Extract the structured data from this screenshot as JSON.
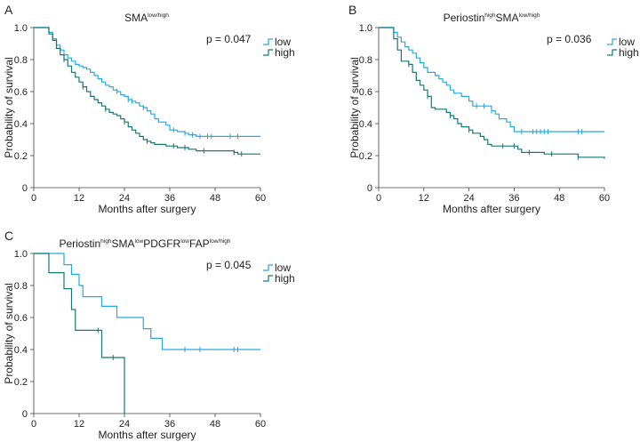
{
  "colors": {
    "low": "#27AAE1",
    "high": "#167A74"
  },
  "chart_data": [
    {
      "panel": "A",
      "type": "line",
      "title_parts": [
        {
          "t": "SMA",
          "sup": false
        },
        {
          "t": "low/high",
          "sup": true
        }
      ],
      "xlabel": "Months after surgery",
      "ylabel": "Probability of survival",
      "xlim": [
        0,
        60
      ],
      "ylim": [
        0,
        1.0
      ],
      "xticks": [
        0,
        12,
        24,
        36,
        48,
        60
      ],
      "yticks": [
        0,
        0.2,
        0.4,
        0.6,
        0.8,
        1.0
      ],
      "p_label": "p = 0.047",
      "series": [
        {
          "name": "low",
          "color_key": "low",
          "points": [
            [
              0,
              1.0
            ],
            [
              3,
              1.0
            ],
            [
              4,
              0.97
            ],
            [
              5,
              0.93
            ],
            [
              6,
              0.89
            ],
            [
              7,
              0.86
            ],
            [
              8,
              0.83
            ],
            [
              9,
              0.81
            ],
            [
              10,
              0.79
            ],
            [
              11,
              0.77
            ],
            [
              12,
              0.76
            ],
            [
              13,
              0.75
            ],
            [
              14,
              0.74
            ],
            [
              15,
              0.72
            ],
            [
              16,
              0.7
            ],
            [
              17,
              0.68
            ],
            [
              18,
              0.66
            ],
            [
              19,
              0.64
            ],
            [
              20,
              0.63
            ],
            [
              21,
              0.61
            ],
            [
              22,
              0.6
            ],
            [
              23,
              0.58
            ],
            [
              24,
              0.57
            ],
            [
              25,
              0.55
            ],
            [
              26,
              0.54
            ],
            [
              27,
              0.53
            ],
            [
              28,
              0.51
            ],
            [
              29,
              0.5
            ],
            [
              30,
              0.48
            ],
            [
              31,
              0.46
            ],
            [
              32,
              0.43
            ],
            [
              33,
              0.41
            ],
            [
              35,
              0.39
            ],
            [
              36,
              0.36
            ],
            [
              38,
              0.35
            ],
            [
              40,
              0.34
            ],
            [
              41,
              0.33
            ],
            [
              43,
              0.32
            ],
            [
              60,
              0.32
            ]
          ],
          "censor": [
            22,
            25,
            26,
            29,
            37,
            40,
            42,
            44,
            46,
            47,
            52,
            54
          ]
        },
        {
          "name": "high",
          "color_key": "high",
          "points": [
            [
              0,
              1.0
            ],
            [
              3,
              1.0
            ],
            [
              4,
              0.96
            ],
            [
              5,
              0.92
            ],
            [
              6,
              0.87
            ],
            [
              7,
              0.83
            ],
            [
              8,
              0.8
            ],
            [
              9,
              0.76
            ],
            [
              10,
              0.72
            ],
            [
              11,
              0.69
            ],
            [
              12,
              0.66
            ],
            [
              13,
              0.63
            ],
            [
              14,
              0.6
            ],
            [
              15,
              0.57
            ],
            [
              16,
              0.55
            ],
            [
              17,
              0.53
            ],
            [
              18,
              0.51
            ],
            [
              19,
              0.49
            ],
            [
              20,
              0.47
            ],
            [
              21,
              0.46
            ],
            [
              22,
              0.45
            ],
            [
              23,
              0.43
            ],
            [
              24,
              0.41
            ],
            [
              25,
              0.38
            ],
            [
              26,
              0.36
            ],
            [
              27,
              0.34
            ],
            [
              28,
              0.32
            ],
            [
              29,
              0.3
            ],
            [
              30,
              0.29
            ],
            [
              31,
              0.28
            ],
            [
              32,
              0.27
            ],
            [
              35,
              0.26
            ],
            [
              38,
              0.25
            ],
            [
              41,
              0.24
            ],
            [
              43,
              0.23
            ],
            [
              53,
              0.22
            ],
            [
              54,
              0.21
            ],
            [
              60,
              0.21
            ]
          ],
          "censor": [
            8,
            13,
            19,
            24,
            30,
            37,
            40,
            45,
            53,
            55
          ]
        }
      ]
    },
    {
      "panel": "B",
      "type": "line",
      "title_parts": [
        {
          "t": "Periostin",
          "sup": false
        },
        {
          "t": "high",
          "sup": true
        },
        {
          "t": "SMA",
          "sup": false
        },
        {
          "t": "low/high",
          "sup": true
        }
      ],
      "xlabel": "Months after surgery",
      "ylabel": "Probability of survival",
      "xlim": [
        0,
        60
      ],
      "ylim": [
        0,
        1.0
      ],
      "xticks": [
        0,
        12,
        24,
        36,
        48,
        60
      ],
      "yticks": [
        0,
        0.2,
        0.4,
        0.6,
        0.8,
        1.0
      ],
      "p_label": "p = 0.036",
      "series": [
        {
          "name": "low",
          "color_key": "low",
          "points": [
            [
              0,
              1.0
            ],
            [
              3,
              1.0
            ],
            [
              4,
              0.97
            ],
            [
              5,
              0.94
            ],
            [
              6,
              0.91
            ],
            [
              7,
              0.88
            ],
            [
              8,
              0.86
            ],
            [
              9,
              0.84
            ],
            [
              10,
              0.81
            ],
            [
              11,
              0.78
            ],
            [
              12,
              0.75
            ],
            [
              13,
              0.72
            ],
            [
              15,
              0.7
            ],
            [
              16,
              0.68
            ],
            [
              17,
              0.66
            ],
            [
              18,
              0.64
            ],
            [
              19,
              0.61
            ],
            [
              20,
              0.59
            ],
            [
              22,
              0.57
            ],
            [
              24,
              0.54
            ],
            [
              25,
              0.51
            ],
            [
              30,
              0.48
            ],
            [
              31,
              0.46
            ],
            [
              32,
              0.43
            ],
            [
              34,
              0.41
            ],
            [
              35,
              0.38
            ],
            [
              36,
              0.35
            ],
            [
              60,
              0.35
            ]
          ],
          "censor": [
            26,
            28,
            30,
            38,
            41,
            42,
            43,
            44,
            45,
            53,
            54
          ]
        },
        {
          "name": "high",
          "color_key": "high",
          "points": [
            [
              0,
              1.0
            ],
            [
              3,
              1.0
            ],
            [
              4,
              0.93
            ],
            [
              5,
              0.86
            ],
            [
              6,
              0.79
            ],
            [
              8,
              0.77
            ],
            [
              9,
              0.72
            ],
            [
              10,
              0.67
            ],
            [
              11,
              0.64
            ],
            [
              12,
              0.61
            ],
            [
              13,
              0.57
            ],
            [
              14,
              0.5
            ],
            [
              15,
              0.49
            ],
            [
              18,
              0.47
            ],
            [
              19,
              0.45
            ],
            [
              20,
              0.43
            ],
            [
              21,
              0.4
            ],
            [
              22,
              0.38
            ],
            [
              24,
              0.36
            ],
            [
              25,
              0.34
            ],
            [
              27,
              0.32
            ],
            [
              28,
              0.3
            ],
            [
              29,
              0.27
            ],
            [
              30,
              0.26
            ],
            [
              37,
              0.24
            ],
            [
              38,
              0.22
            ],
            [
              44,
              0.21
            ],
            [
              53,
              0.19
            ],
            [
              60,
              0.18
            ]
          ],
          "censor": [
            8,
            13,
            19,
            24,
            33,
            36,
            40,
            46,
            53
          ]
        }
      ]
    },
    {
      "panel": "C",
      "type": "line",
      "title_parts": [
        {
          "t": "Periostin",
          "sup": false
        },
        {
          "t": "high",
          "sup": true
        },
        {
          "t": "SMA",
          "sup": false
        },
        {
          "t": "low",
          "sup": true
        },
        {
          "t": "PDGFR",
          "sup": false
        },
        {
          "t": "low",
          "sup": true
        },
        {
          "t": "FAP",
          "sup": false
        },
        {
          "t": "low/high",
          "sup": true
        }
      ],
      "xlabel": "Months after surgery",
      "ylabel": "Probability of survival",
      "xlim": [
        0,
        60
      ],
      "ylim": [
        0,
        1.0
      ],
      "xticks": [
        0,
        12,
        24,
        36,
        48,
        60
      ],
      "yticks": [
        0,
        0.2,
        0.4,
        0.6,
        0.8,
        1.0
      ],
      "p_label": "p = 0.045",
      "series": [
        {
          "name": "low",
          "color_key": "low",
          "points": [
            [
              0,
              1.0
            ],
            [
              6,
              1.0
            ],
            [
              8,
              0.93
            ],
            [
              10,
              0.87
            ],
            [
              12,
              0.8
            ],
            [
              13,
              0.73
            ],
            [
              18,
              0.67
            ],
            [
              22,
              0.6
            ],
            [
              29,
              0.53
            ],
            [
              31,
              0.47
            ],
            [
              34,
              0.4
            ],
            [
              60,
              0.4
            ]
          ],
          "censor": [
            40,
            44,
            53,
            54
          ]
        },
        {
          "name": "high",
          "color_key": "high",
          "points": [
            [
              0,
              1.0
            ],
            [
              4,
              1.0
            ],
            [
              4,
              0.88
            ],
            [
              8,
              0.78
            ],
            [
              10,
              0.65
            ],
            [
              11,
              0.52
            ],
            [
              18,
              0.35
            ],
            [
              24,
              0.0
            ]
          ],
          "censor": [
            17,
            21
          ]
        }
      ]
    }
  ],
  "panels": [
    {
      "letter": "A"
    },
    {
      "letter": "B"
    },
    {
      "letter": "C"
    }
  ]
}
